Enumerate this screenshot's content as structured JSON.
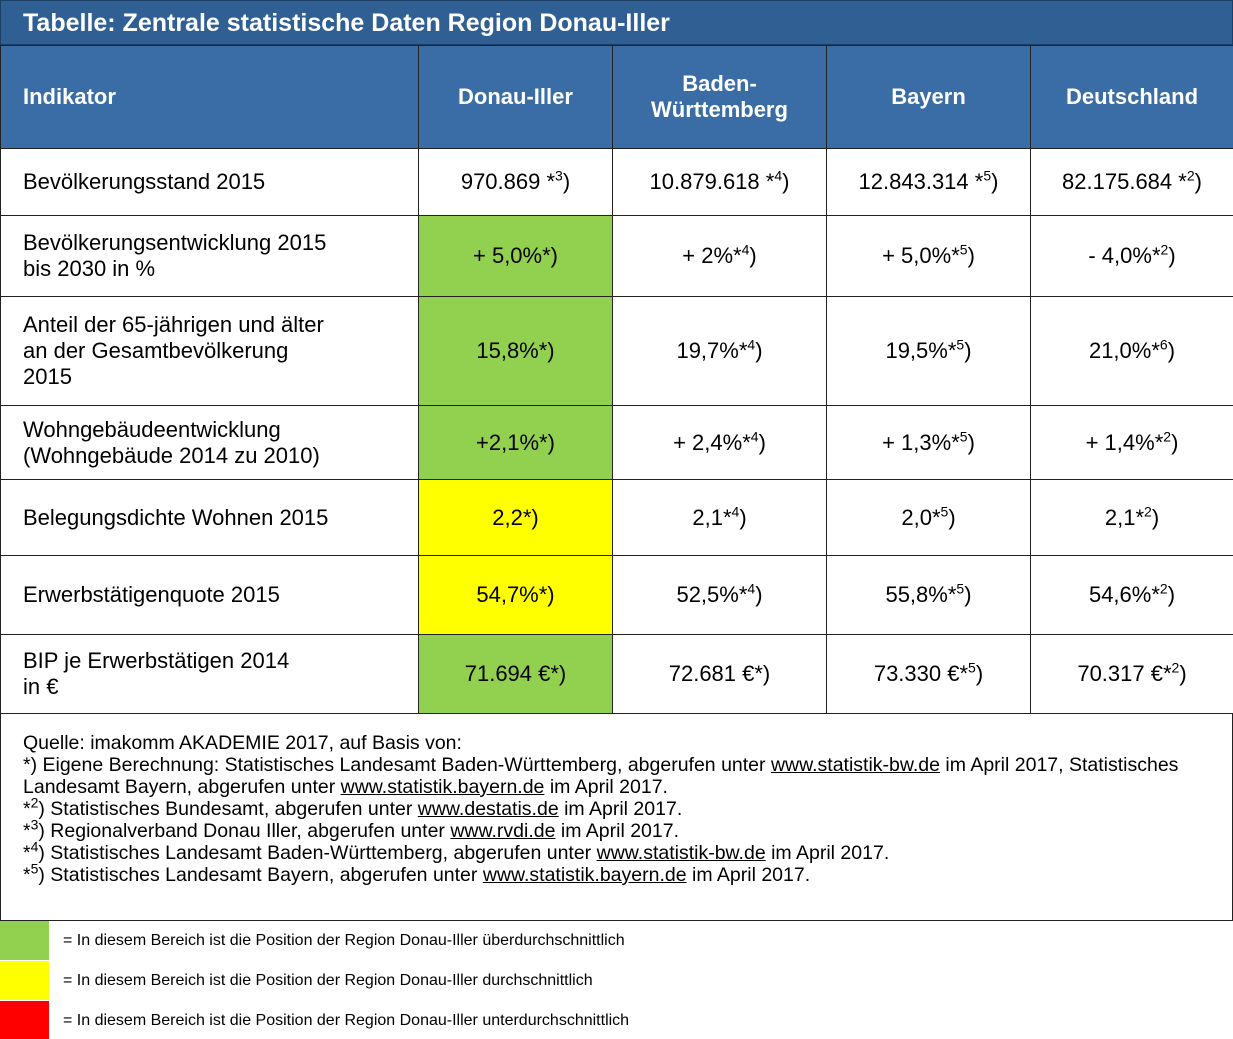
{
  "title": "Tabelle: Zentrale statistische Daten Region Donau-Iller",
  "table": {
    "header": [
      [
        "Indikator"
      ],
      [
        "Donau-Iller"
      ],
      [
        "Baden-",
        "Württemberg"
      ],
      [
        "Bayern"
      ],
      [
        "Deutschland"
      ]
    ],
    "rows": [
      {
        "label": [
          "Bevölkerungsstand 2015"
        ],
        "cells": [
          {
            "text": "970.869 *",
            "sup": "3",
            "tail": ")"
          },
          {
            "text": "10.879.618 *",
            "sup": "4",
            "tail": ")"
          },
          {
            "text": "12.843.314 *",
            "sup": "5",
            "tail": ")"
          },
          {
            "text": "82.175.684 *",
            "sup": "2",
            "tail": ")"
          }
        ]
      },
      {
        "label": [
          "Bevölkerungsentwicklung 2015",
          "bis 2030 in %"
        ],
        "cells": [
          {
            "text": "+ 5,0%*)",
            "fill": "#92d050"
          },
          {
            "text": "+ 2%*",
            "sup": "4",
            "tail": ")"
          },
          {
            "text": "+ 5,0%*",
            "sup": "5",
            "tail": ")"
          },
          {
            "text": "- 4,0%*",
            "sup": "2",
            "tail": ")"
          }
        ]
      },
      {
        "label": [
          "Anteil der 65-jährigen und älter",
          "an der Gesamtbevölkerung",
          "2015"
        ],
        "cells": [
          {
            "text": "15,8%*)",
            "fill": "#92d050"
          },
          {
            "text": "19,7%*",
            "sup": "4",
            "tail": ")"
          },
          {
            "text": "19,5%*",
            "sup": "5",
            "tail": ")"
          },
          {
            "text": "21,0%*",
            "sup": "6",
            "tail": ")"
          }
        ]
      },
      {
        "label": [
          "Wohngebäudeentwicklung",
          "(Wohngebäude 2014 zu 2010)"
        ],
        "cells": [
          {
            "text": "+2,1%*)",
            "fill": "#92d050"
          },
          {
            "text": "+ 2,4%*",
            "sup": "4",
            "tail": ")"
          },
          {
            "text": "+ 1,3%*",
            "sup": "5",
            "tail": ")"
          },
          {
            "text": "+ 1,4%*",
            "sup": "2",
            "tail": ")"
          }
        ]
      },
      {
        "label": [
          "Belegungsdichte Wohnen 2015"
        ],
        "cells": [
          {
            "text": "2,2*)",
            "fill": "#ffff00"
          },
          {
            "text": "2,1*",
            "sup": "4",
            "tail": ")"
          },
          {
            "text": "2,0*",
            "sup": "5",
            "tail": ")"
          },
          {
            "text": "2,1*",
            "sup": "2",
            "tail": ")"
          }
        ]
      },
      {
        "label": [
          "Erwerbstätigenquote 2015"
        ],
        "cells": [
          {
            "text": "54,7%*)",
            "fill": "#ffff00"
          },
          {
            "text": "52,5%*",
            "sup": "4",
            "tail": ")"
          },
          {
            "text": "55,8%*",
            "sup": "5",
            "tail": ")"
          },
          {
            "text": "54,6%*",
            "sup": "2",
            "tail": ")"
          }
        ]
      },
      {
        "label": [
          "BIP je Erwerbstätigen 2014",
          "in €"
        ],
        "cells": [
          {
            "text": "71.694 €*)",
            "fill": "#92d050"
          },
          {
            "text": "72.681 €*)"
          },
          {
            "text": "73.330 €*",
            "sup": "5",
            "tail": ")"
          },
          {
            "text": "70.317 €*",
            "sup": "2",
            "tail": ")"
          }
        ]
      }
    ]
  },
  "footnotes": [
    [
      {
        "t": "Quelle: imakomm AKADEMIE 2017, auf Basis von:"
      }
    ],
    [
      {
        "t": "*) Eigene Berechnung:  Statistisches Landesamt Baden-Württemberg, abgerufen unter "
      },
      {
        "link": "www.statistik-bw.de"
      },
      {
        "t": " im April 2017, Statistisches Landesamt Bayern, abgerufen unter "
      },
      {
        "link": "www.statistik.bayern.de"
      },
      {
        "t": " im April 2017."
      }
    ],
    [
      {
        "t": "*"
      },
      {
        "sup": "2"
      },
      {
        "t": ") Statistisches Bundesamt, abgerufen unter "
      },
      {
        "link": "www.destatis.de"
      },
      {
        "t": " im April 2017."
      }
    ],
    [
      {
        "t": "*"
      },
      {
        "sup": "3"
      },
      {
        "t": ") Regionalverband Donau Iller, abgerufen unter "
      },
      {
        "link": "www.rvdi.de"
      },
      {
        "t": " im April 2017."
      }
    ],
    [
      {
        "t": "*"
      },
      {
        "sup": "4"
      },
      {
        "t": ") Statistisches Landesamt Baden-Württemberg, abgerufen unter "
      },
      {
        "link": "www.statistik-bw.de"
      },
      {
        "t": " im April 2017."
      }
    ],
    [
      {
        "t": "*"
      },
      {
        "sup": "5"
      },
      {
        "t": ") Statistisches Landesamt Bayern, abgerufen unter "
      },
      {
        "link": "www.statistik.bayern.de"
      },
      {
        "t": " im April 2017."
      }
    ]
  ],
  "legend": [
    {
      "color": "#92d050",
      "text": "= In diesem Bereich ist die Position der Region Donau-Iller überdurchschnittlich"
    },
    {
      "color": "#ffff00",
      "text": "= In diesem Bereich ist die Position der Region Donau-Iller durchschnittlich"
    },
    {
      "color": "#ff0000",
      "text": "= In diesem Bereich ist die Position der Region Donau-Iller unterdurchschnittlich"
    }
  ]
}
